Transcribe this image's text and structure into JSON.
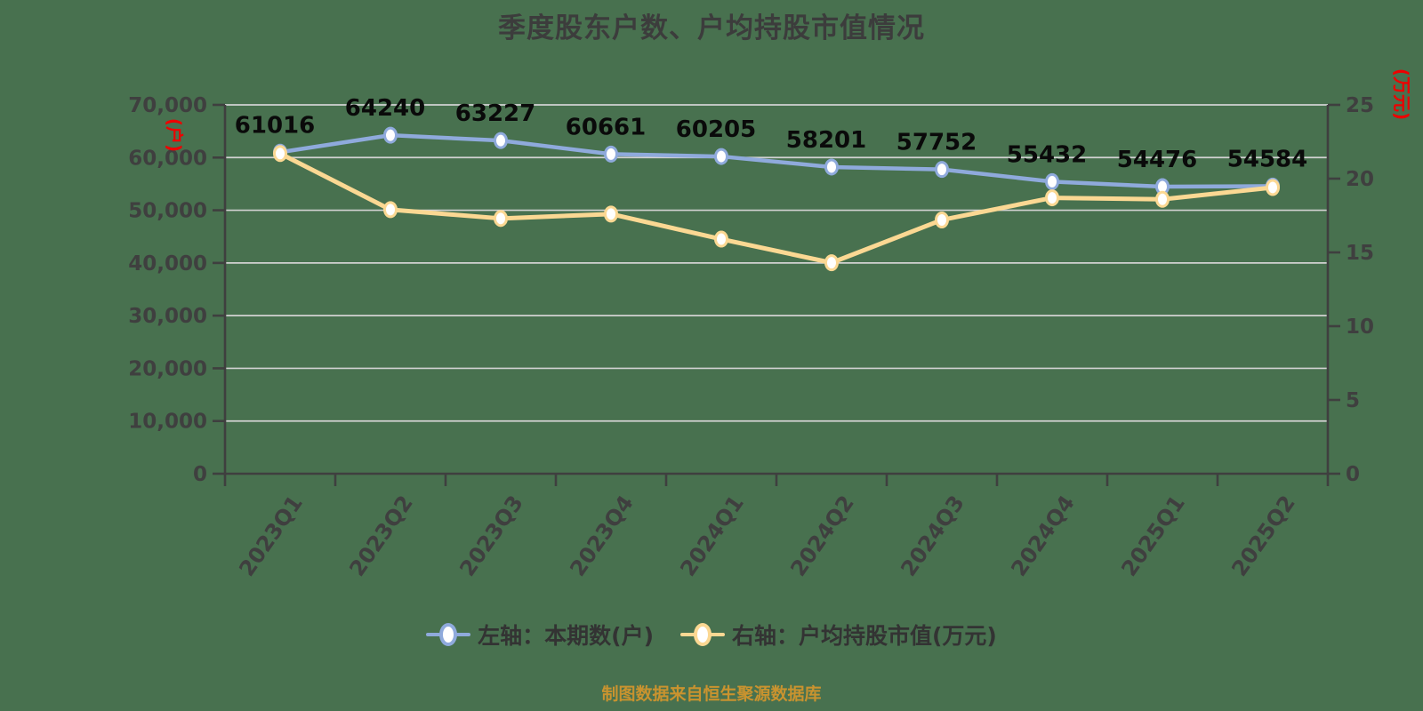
{
  "title": "季度股东户数、户均持股市值情况",
  "footer": {
    "source_note": "制图数据来自恒生聚源数据库"
  },
  "legend": {
    "position": "bottom",
    "items": [
      {
        "label": "左轴：本期数(户)",
        "color": "#8FAADC",
        "marker": "line-circle-icon"
      },
      {
        "label": "右轴：户均持股市值(万元)",
        "color": "#FBD893",
        "marker": "line-circle-icon"
      }
    ]
  },
  "chart_data": {
    "type": "line",
    "title": "季度股东户数、户均持股市值情况",
    "categories": [
      "2023Q1",
      "2023Q2",
      "2023Q3",
      "2023Q4",
      "2024Q1",
      "2024Q2",
      "2024Q3",
      "2024Q4",
      "2025Q1",
      "2025Q2"
    ],
    "series": [
      {
        "name": "左轴：本期数(户)",
        "axis": "left",
        "color": "#8FAADC",
        "values": [
          61016,
          64240,
          63227,
          60661,
          60205,
          58201,
          57752,
          55432,
          54476,
          54584
        ],
        "data_labels": true
      },
      {
        "name": "右轴：户均持股市值(万元)",
        "axis": "right",
        "color": "#FBD893",
        "values": [
          21.7,
          17.9,
          17.3,
          17.6,
          15.9,
          14.3,
          17.2,
          18.7,
          18.6,
          19.4
        ],
        "data_labels": false
      }
    ],
    "left_axis": {
      "min": 0,
      "max": 70000,
      "step": 10000,
      "unit_label": "(户)",
      "unit_color": "#EE0000",
      "tick_format": "thousands"
    },
    "right_axis": {
      "min": 0,
      "max": 25,
      "step": 5,
      "unit_label": "(万元)",
      "unit_color": "#EE0000",
      "tick_format": "plain"
    },
    "grid": true,
    "x_label_rotation": -55
  },
  "colors": {
    "background": "#48714F",
    "grid_line": "#D2D2D2",
    "axis_line": "#3F3F3F",
    "tick_label": "#3F3F3F",
    "value_label": "#0A0A0A",
    "title_text": "#3C3C3C",
    "legend_text": "#333333",
    "footer_text": "#C9932F"
  }
}
